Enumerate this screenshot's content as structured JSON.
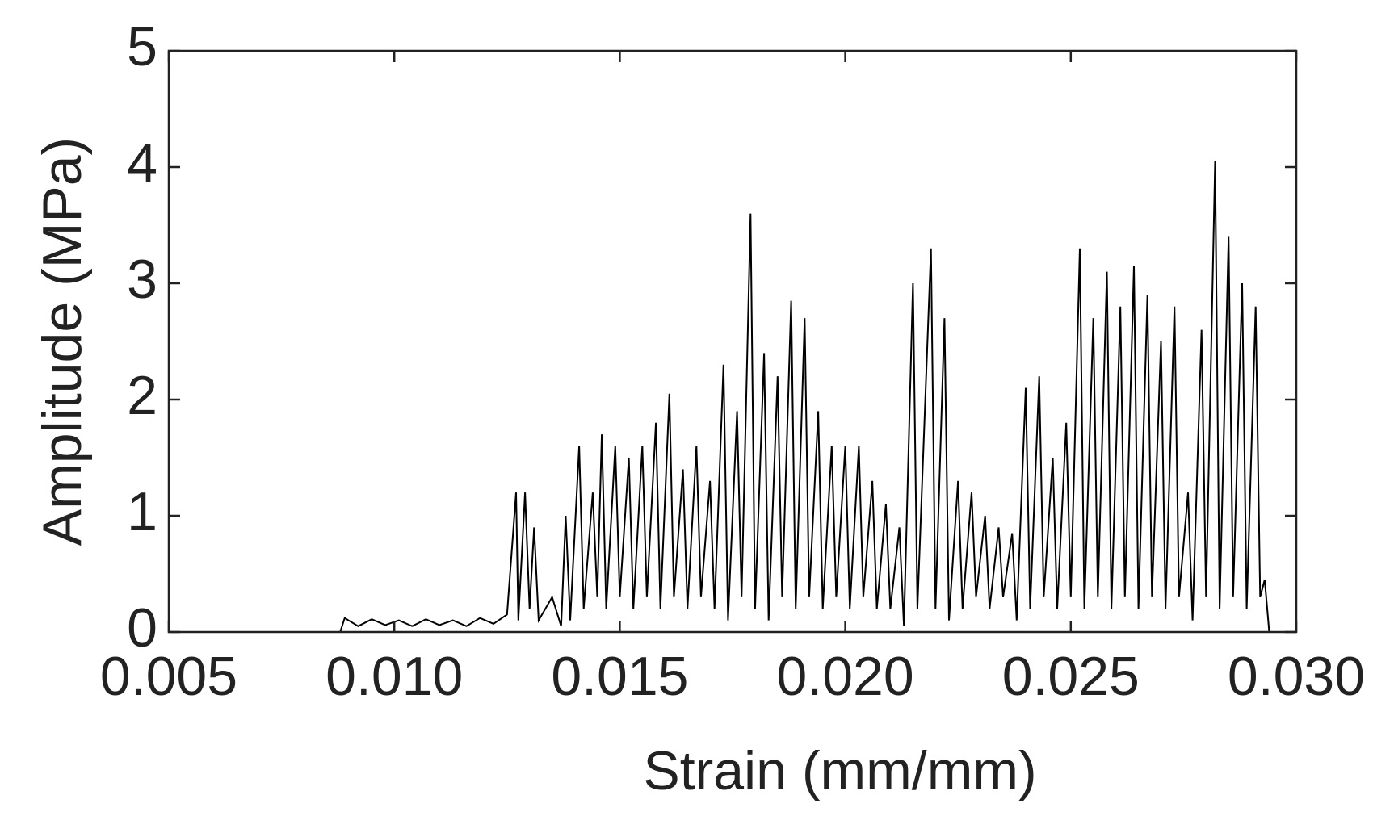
{
  "chart_data": {
    "type": "line",
    "xlabel": "Strain (mm/mm)",
    "ylabel": "Amplitude (MPa)",
    "xlim": [
      0.005,
      0.03
    ],
    "xticks": [
      0.005,
      {
        "value": 0.01,
        "label": "0.010"
      },
      0.015,
      {
        "value": 0.02,
        "label": "0.020"
      },
      0.025,
      {
        "value": 0.03,
        "label": "0.030"
      }
    ],
    "ylim": [
      0,
      5
    ],
    "yticks": [
      0,
      1,
      2,
      3,
      4,
      5
    ],
    "grid": false,
    "series": [
      {
        "color": "#000000",
        "x": [
          0.0088,
          0.0089,
          0.0092,
          0.0095,
          0.0098,
          0.0101,
          0.0104,
          0.0107,
          0.011,
          0.0113,
          0.0116,
          0.0119,
          0.0122,
          0.0125,
          0.0127,
          0.01275,
          0.0129,
          0.013,
          0.0131,
          0.0132,
          0.0135,
          0.0137,
          0.0138,
          0.0139,
          0.0141,
          0.0142,
          0.0144,
          0.0145,
          0.0146,
          0.0147,
          0.0149,
          0.015,
          0.0152,
          0.0153,
          0.0155,
          0.0156,
          0.0158,
          0.0159,
          0.0161,
          0.0162,
          0.0164,
          0.0165,
          0.0167,
          0.0168,
          0.017,
          0.0171,
          0.0173,
          0.0174,
          0.0176,
          0.0177,
          0.0179,
          0.018,
          0.0182,
          0.0183,
          0.0185,
          0.0186,
          0.0188,
          0.0189,
          0.0191,
          0.0192,
          0.0194,
          0.0195,
          0.0197,
          0.0198,
          0.02,
          0.0201,
          0.0203,
          0.0204,
          0.0206,
          0.0207,
          0.0209,
          0.021,
          0.0212,
          0.0213,
          0.0215,
          0.0216,
          0.0219,
          0.022,
          0.0222,
          0.0223,
          0.0225,
          0.0226,
          0.0228,
          0.0229,
          0.0231,
          0.0232,
          0.0234,
          0.0235,
          0.0237,
          0.0238,
          0.024,
          0.0241,
          0.0243,
          0.0244,
          0.0246,
          0.0247,
          0.0249,
          0.025,
          0.0252,
          0.0253,
          0.0255,
          0.0256,
          0.0258,
          0.0259,
          0.0261,
          0.0262,
          0.0264,
          0.0265,
          0.0267,
          0.0268,
          0.027,
          0.0271,
          0.0273,
          0.0274,
          0.0276,
          0.0277,
          0.0279,
          0.028,
          0.0282,
          0.0283,
          0.0285,
          0.0286,
          0.0288,
          0.0289,
          0.0291,
          0.0292,
          0.0293,
          0.0294
        ],
        "values": [
          0,
          0.12,
          0.05,
          0.11,
          0.06,
          0.1,
          0.05,
          0.11,
          0.06,
          0.1,
          0.05,
          0.12,
          0.07,
          0.15,
          1.2,
          0.1,
          1.2,
          0.2,
          0.9,
          0.1,
          0.3,
          0.05,
          1.0,
          0.1,
          1.6,
          0.2,
          1.2,
          0.3,
          1.7,
          0.2,
          1.6,
          0.3,
          1.5,
          0.2,
          1.6,
          0.3,
          1.8,
          0.2,
          2.05,
          0.3,
          1.4,
          0.2,
          1.6,
          0.3,
          1.3,
          0.2,
          2.3,
          0.1,
          1.9,
          0.3,
          3.6,
          0.2,
          2.4,
          0.1,
          2.2,
          0.3,
          2.85,
          0.2,
          2.7,
          0.3,
          1.9,
          0.2,
          1.6,
          0.3,
          1.6,
          0.2,
          1.6,
          0.3,
          1.3,
          0.2,
          1.1,
          0.2,
          0.9,
          0.05,
          3.0,
          0.2,
          3.3,
          0.2,
          2.7,
          0.1,
          1.3,
          0.2,
          1.2,
          0.3,
          1.0,
          0.2,
          0.9,
          0.3,
          0.85,
          0.1,
          2.1,
          0.2,
          2.2,
          0.3,
          1.5,
          0.2,
          1.8,
          0.3,
          3.3,
          0.2,
          2.7,
          0.3,
          3.1,
          0.2,
          2.8,
          0.3,
          3.15,
          0.2,
          2.9,
          0.3,
          2.5,
          0.2,
          2.8,
          0.3,
          1.2,
          0.1,
          2.6,
          0.3,
          4.05,
          0.2,
          3.4,
          0.3,
          3.0,
          0.2,
          2.8,
          0.3,
          0.45,
          0
        ]
      }
    ]
  }
}
